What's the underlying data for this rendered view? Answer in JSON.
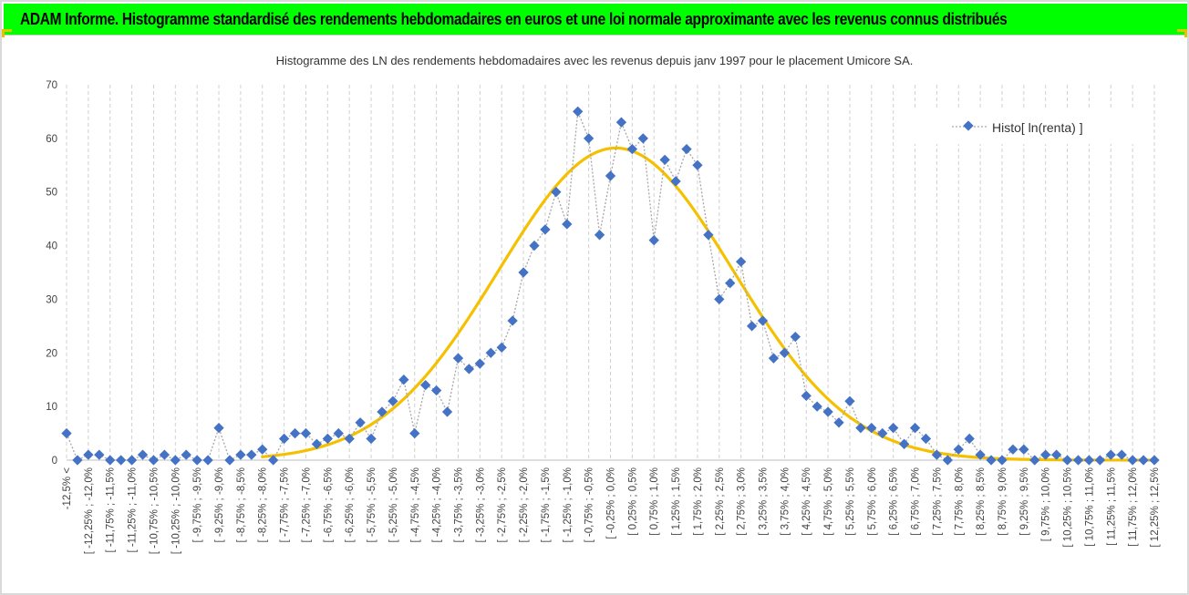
{
  "banner": {
    "title": "ADAM Informe. Histogramme standardisé des rendements hebdomadaires en euros et une loi normale approximante avec les revenus connus distribués"
  },
  "chart_data": {
    "type": "line",
    "title": "Histogramme des LN des rendements hebdomadaires avec les revenus depuis janv 1997 pour le placement Umicore SA.",
    "ylim": [
      0,
      70
    ],
    "yticks": [
      0,
      10,
      20,
      30,
      40,
      50,
      60,
      70
    ],
    "grid": "vertical-dashed",
    "legend_position": "top-right",
    "categories": [
      "-12,5% <",
      "[ -12,25% ; -12,0%",
      "[ -11,75% ; -11,5%",
      "[ -11,25% ; -11,0%",
      "[ -10,75% ; -10,5%",
      "[ -10,25% ; -10,0%",
      "[ -9,75% ; -9,5%",
      "[ -9,25% ; -9,0%",
      "[ -8,75% ; -8,5%",
      "[ -8,25% ; -8,0%",
      "[ -7,75% ; -7,5%",
      "[ -7,25% ; -7,0%",
      "[ -6,75% ; -6,5%",
      "[ -6,25% ; -6,0%",
      "[ -5,75% ; -5,5%",
      "[ -5,25% ; -5,0%",
      "[ -4,75% ; -4,5%",
      "[ -4,25% ; -4,0%",
      "[ -3,75% ; -3,5%",
      "[ -3,25% ; -3,0%",
      "[ -2,75% ; -2,5%",
      "[ -2,25% ; -2,0%",
      "[ -1,75% ; -1,5%",
      "[ -1,25% ; -1,0%",
      "[ -0,75% ; -0,5%",
      "[ -0,25% ; 0,0%",
      "[ 0,25% ; 0,5%",
      "[ 0,75% ; 1,0%",
      "[ 1,25% ; 1,5%",
      "[ 1,75% ; 2,0%",
      "[ 2,25% ; 2,5%",
      "[ 2,75% ; 3,0%",
      "[ 3,25% ; 3,5%",
      "[ 3,75% ; 4,0%",
      "[ 4,25% ; 4,5%",
      "[ 4,75% ; 5,0%",
      "[ 5,25% ; 5,5%",
      "[ 5,75% ; 6,0%",
      "[ 6,25% ; 6,5%",
      "[ 6,75% ; 7,0%",
      "[ 7,25% ; 7,5%",
      "[ 7,75% ; 8,0%",
      "[ 8,25% ; 8,5%",
      "[ 8,75% ; 9,0%",
      "[ 9,25% ; 9,5%",
      "[ 9,75% ; 10,0%",
      "[ 10,25% ; 10,5%",
      "[ 10,75% ; 11,0%",
      "[ 11,25% ; 11,5%",
      "[ 11,75% ; 12,0%",
      "[ 12,25% ; 12,5%"
    ],
    "series": [
      {
        "name": "Histo[ ln(renta) ]",
        "style": "dotted-line-diamond-markers",
        "color": "#4472c4",
        "line_color": "#a6a6a6",
        "x": [
          -12.5,
          -12.25,
          -12.0,
          -11.75,
          -11.5,
          -11.25,
          -11.0,
          -10.75,
          -10.5,
          -10.25,
          -10.0,
          -9.75,
          -9.5,
          -9.25,
          -9.0,
          -8.75,
          -8.5,
          -8.25,
          -8.0,
          -7.75,
          -7.5,
          -7.25,
          -7.0,
          -6.75,
          -6.5,
          -6.25,
          -6.0,
          -5.75,
          -5.5,
          -5.25,
          -5.0,
          -4.75,
          -4.5,
          -4.25,
          -4.0,
          -3.75,
          -3.5,
          -3.25,
          -3.0,
          -2.75,
          -2.5,
          -2.25,
          -2.0,
          -1.75,
          -1.5,
          -1.25,
          -1.0,
          -0.75,
          -0.5,
          -0.25,
          0.0,
          0.25,
          0.5,
          0.75,
          1.0,
          1.25,
          1.5,
          1.75,
          2.0,
          2.25,
          2.5,
          2.75,
          3.0,
          3.25,
          3.5,
          3.75,
          4.0,
          4.25,
          4.5,
          4.75,
          5.0,
          5.25,
          5.5,
          5.75,
          6.0,
          6.25,
          6.5,
          6.75,
          7.0,
          7.25,
          7.5,
          7.75,
          8.0,
          8.25,
          8.5,
          8.75,
          9.0,
          9.25,
          9.5,
          9.75,
          10.0,
          10.25,
          10.5,
          10.75,
          11.0,
          11.25,
          11.5,
          11.75,
          12.0,
          12.25,
          12.5
        ],
        "values": [
          5,
          0,
          1,
          1,
          0,
          0,
          0,
          1,
          0,
          1,
          0,
          1,
          0,
          0,
          6,
          0,
          1,
          1,
          2,
          0,
          4,
          5,
          5,
          3,
          4,
          5,
          4,
          7,
          4,
          9,
          11,
          15,
          5,
          14,
          13,
          9,
          19,
          17,
          18,
          20,
          21,
          26,
          35,
          40,
          43,
          50,
          44,
          65,
          60,
          42,
          53,
          63,
          58,
          60,
          41,
          56,
          52,
          58,
          55,
          42,
          30,
          33,
          37,
          25,
          26,
          19,
          20,
          23,
          12,
          10,
          9,
          7,
          11,
          6,
          6,
          5,
          6,
          3,
          6,
          4,
          1,
          0,
          2,
          4,
          1,
          0,
          0,
          2,
          2,
          0,
          1,
          1,
          0,
          0,
          0,
          0,
          1,
          1,
          0,
          0,
          0
        ]
      },
      {
        "type": "curve",
        "style": "smooth-line",
        "color": "#f5c000",
        "mean": 0.125,
        "sd": 2.7,
        "peak": 58.2,
        "xlim": [
          -8.0,
          12.5
        ]
      }
    ]
  }
}
